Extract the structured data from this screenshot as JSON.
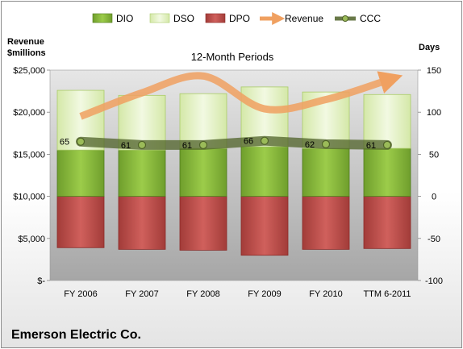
{
  "chart_data": {
    "type": "bar",
    "title": "12-Month Periods",
    "company": "Emerson Electric Co.",
    "categories": [
      "FY 2006",
      "FY 2007",
      "FY 2008",
      "FY 2009",
      "FY 2010",
      "TTM 6-2011"
    ],
    "left_axis": {
      "label_line1": "Revenue",
      "label_line2": "$millions",
      "ylim": [
        0,
        25000
      ],
      "ticks": [
        0,
        5000,
        10000,
        15000,
        20000,
        25000
      ],
      "tick_labels": [
        "$-",
        "$5,000",
        "$10,000",
        "$15,000",
        "$20,000",
        "$25,000"
      ]
    },
    "right_axis": {
      "label": "Days",
      "ylim": [
        -100,
        150
      ],
      "ticks": [
        -100,
        -50,
        0,
        50,
        100,
        150
      ],
      "tick_labels": [
        "-100",
        "-50",
        "0",
        "50",
        "100",
        "150"
      ]
    },
    "series": [
      {
        "name": "DIO",
        "kind": "stacked-bar",
        "color": "#8cbf3f",
        "values": [
          55,
          55,
          57,
          59,
          57,
          57
        ]
      },
      {
        "name": "DSO",
        "kind": "stacked-bar",
        "color": "#e4f2c4",
        "values": [
          71,
          65,
          65,
          71,
          67,
          64
        ]
      },
      {
        "name": "DPO",
        "kind": "negative-bar",
        "color": "#c0504d",
        "values": [
          -61,
          -63,
          -64,
          -70,
          -63,
          -62
        ]
      },
      {
        "name": "Revenue",
        "kind": "smooth-line",
        "axis": "left",
        "color": "#f0a060",
        "values": [
          19500,
          22300,
          24300,
          20400,
          21500,
          23800
        ]
      },
      {
        "name": "CCC",
        "kind": "line",
        "axis": "right",
        "color": "#4f6228",
        "values": [
          65,
          61,
          61,
          66,
          62,
          61
        ],
        "labels": [
          "65",
          "61",
          "61",
          "66",
          "62",
          "61"
        ]
      }
    ],
    "legend_position": "top",
    "grid": false,
    "colors": {
      "plot_bg": "#b6b6b6",
      "plot_bg_light": "#e6e6e6",
      "dio_dark": "#4f7a1c",
      "dso_dark": "#aacb6a",
      "dpo_dark": "#8c2a27",
      "ccc_marker": "#9bbb59"
    }
  }
}
